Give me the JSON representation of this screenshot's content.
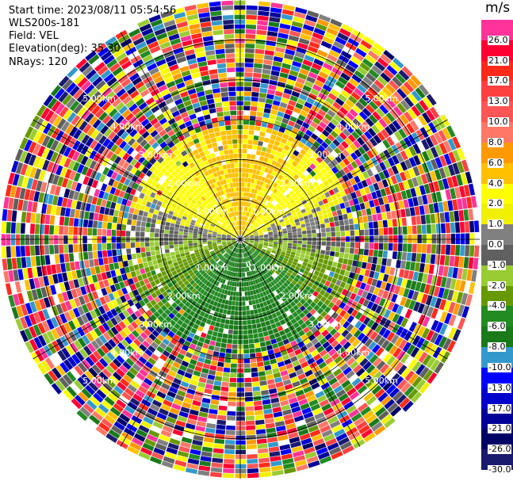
{
  "header": {
    "start_time": "Start time: 2023/08/11 05:54:56",
    "instrument": "WLS200s-181",
    "field": "Field: VEL",
    "elevation": "Elevation(deg): 35.30",
    "nrays": "NRays: 120"
  },
  "colorbar": {
    "unit": "m/s",
    "levels": [
      {
        "label": "26.0",
        "color": "#ff3399"
      },
      {
        "label": "21.0",
        "color": "#ff0033"
      },
      {
        "label": "17.0",
        "color": "#ff2a1a"
      },
      {
        "label": "13.0",
        "color": "#ff4040"
      },
      {
        "label": "10.0",
        "color": "#ff5555"
      },
      {
        "label": "8.0",
        "color": "#ff7766"
      },
      {
        "label": "6.0",
        "color": "#ff9900"
      },
      {
        "label": "4.0",
        "color": "#ffc000"
      },
      {
        "label": "2.0",
        "color": "#ffff00"
      },
      {
        "label": "1.0",
        "color": "#f0f000"
      },
      {
        "label": "0.0",
        "color": "#808080"
      },
      {
        "label": "-1.0",
        "color": "#606060"
      },
      {
        "label": "-2.0",
        "color": "#99cc33"
      },
      {
        "label": "-4.0",
        "color": "#669900"
      },
      {
        "label": "-6.0",
        "color": "#228b22"
      },
      {
        "label": "-8.0",
        "color": "#1a7a1a"
      },
      {
        "label": "-10.0",
        "color": "#3399cc"
      },
      {
        "label": "-13.0",
        "color": "#0000ff"
      },
      {
        "label": "-17.0",
        "color": "#0000cc"
      },
      {
        "label": "-21.0",
        "color": "#000099"
      },
      {
        "label": "-26.0",
        "color": "#000066"
      },
      {
        "label": "-30.0",
        "color": "#1a1a6e"
      }
    ]
  },
  "chart_data": {
    "type": "heatmap",
    "subtype": "radar-ppi",
    "title": "WLS200s-181",
    "field": "VEL",
    "units": "m/s",
    "elevation_deg": 35.3,
    "n_rays": 120,
    "max_range_km": 6.0,
    "range_rings_km": [
      1.0,
      2.0,
      3.0,
      4.0,
      5.0
    ],
    "range_ring_labels": [
      "1.00km",
      "2.00km",
      "3.00km",
      "4.00km",
      "5.00km"
    ],
    "vmin": -30.0,
    "vmax": 26.0,
    "coherent_range_km": 2.8,
    "notes": "Near range: positive velocities (yellow/orange) to the north half, negative (green/gray) to the south half; beyond ~3km noise."
  }
}
